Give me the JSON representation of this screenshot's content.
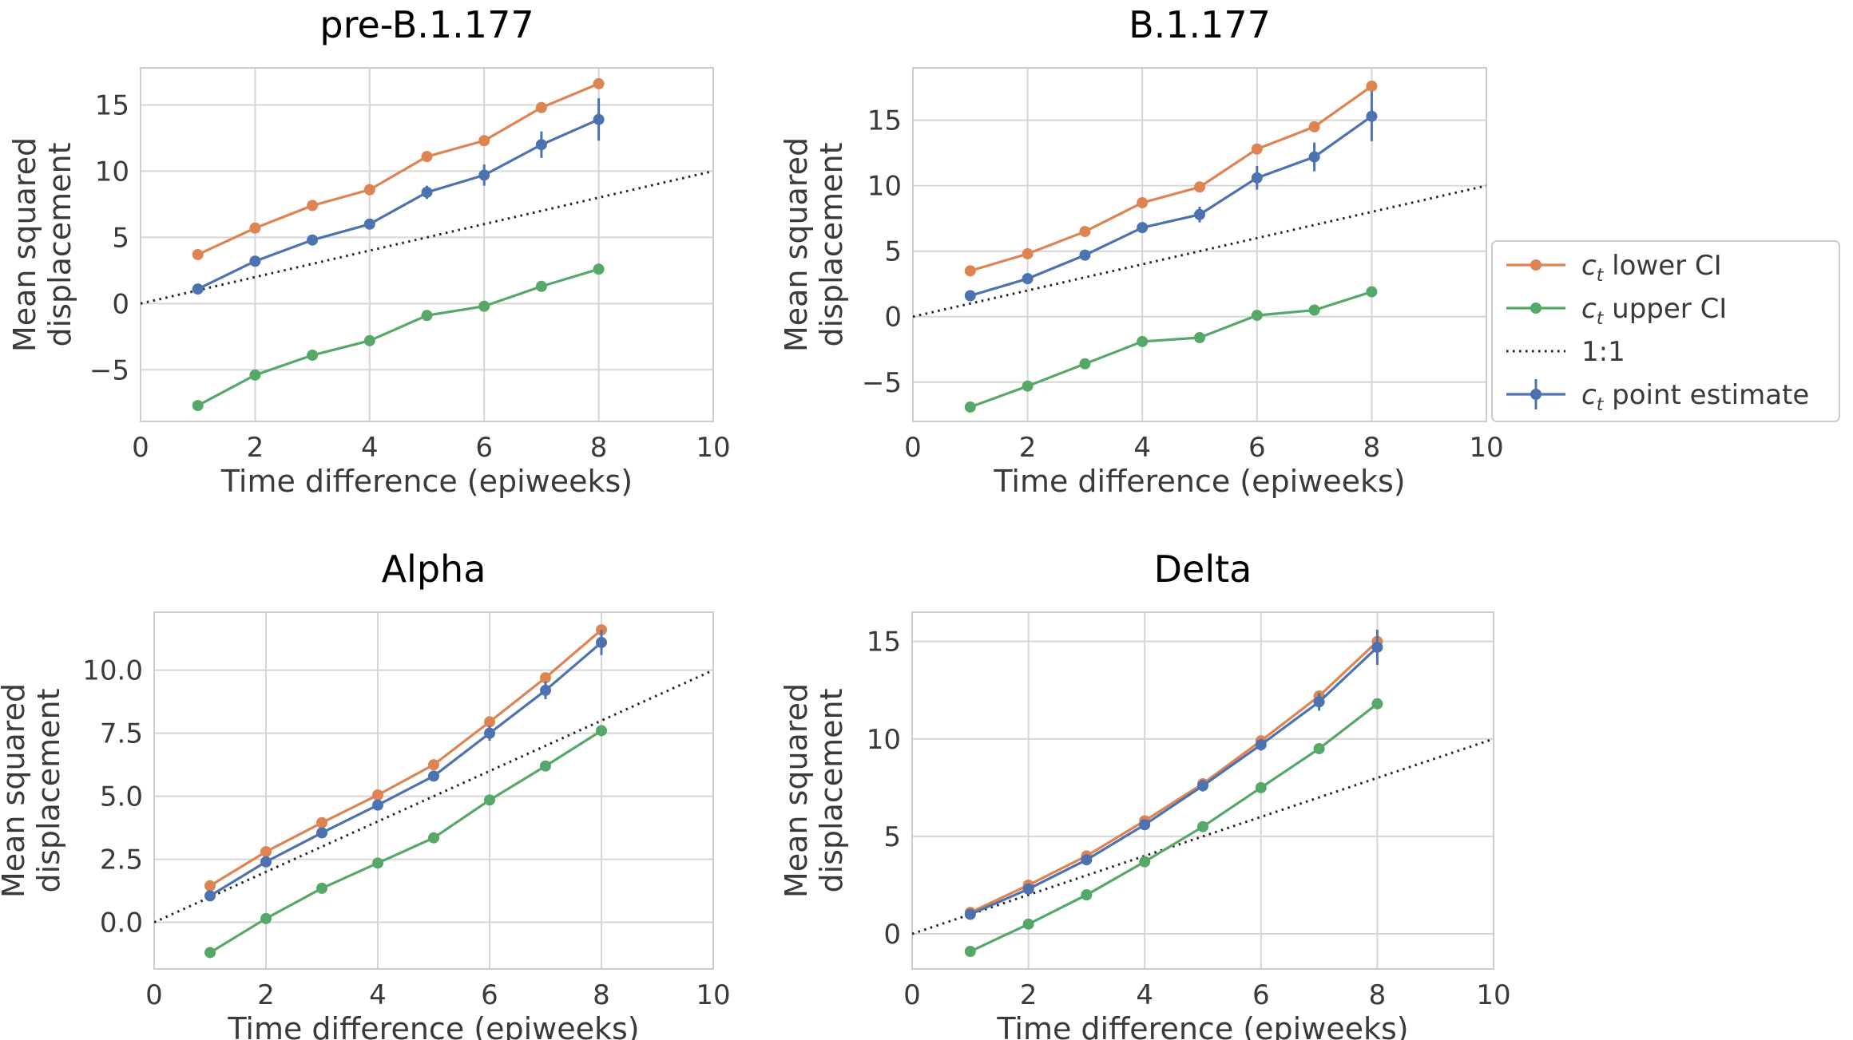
{
  "colors": {
    "lower_ci": "#DD8452",
    "upper_ci": "#55A868",
    "point_estimate": "#4C72B0",
    "one_to_one": "#222222",
    "grid": "#D6D6D6",
    "frame": "#CCCCCC"
  },
  "legend": {
    "placement": "right of top-right chart",
    "entries": [
      {
        "key": "lower",
        "symbol": "c",
        "subscript": "t",
        "text": " lower CI",
        "style": "line-marker",
        "color": "#DD8452"
      },
      {
        "key": "upper",
        "symbol": "c",
        "subscript": "t",
        "text": " upper CI",
        "style": "line-marker",
        "color": "#55A868"
      },
      {
        "key": "one",
        "symbol": "",
        "subscript": "",
        "text": "1:1",
        "style": "dotted",
        "color": "#222222"
      },
      {
        "key": "point",
        "symbol": "c",
        "subscript": "t",
        "text": " point estimate",
        "style": "errorbar",
        "color": "#4C72B0"
      }
    ]
  },
  "chart_data": [
    {
      "type": "line",
      "title": "pre-B.1.177",
      "xlabel": "Time difference (epiweeks)",
      "ylabel": [
        "Mean squared",
        "displacement"
      ],
      "xlim": [
        0,
        10
      ],
      "ylim": [
        -8.9,
        17.8
      ],
      "xticks": [
        0,
        2,
        4,
        6,
        8,
        10
      ],
      "yticks": [
        -5,
        0,
        5,
        10,
        15
      ],
      "ytick_labels": [
        "−5",
        "0",
        "5",
        "10",
        "15"
      ],
      "grid": true,
      "x": [
        1,
        2,
        3,
        4,
        5,
        6,
        7,
        8
      ],
      "series": [
        {
          "name": "c_t lower CI",
          "key": "lower",
          "values": [
            3.7,
            5.7,
            7.4,
            8.6,
            11.1,
            12.3,
            14.8,
            16.6
          ]
        },
        {
          "name": "c_t upper CI",
          "key": "upper",
          "values": [
            -7.7,
            -5.4,
            -3.9,
            -2.8,
            -0.9,
            -0.2,
            1.3,
            2.6
          ]
        },
        {
          "name": "c_t point estimate",
          "key": "point",
          "values": [
            1.1,
            3.2,
            4.8,
            6.0,
            8.4,
            9.7,
            12.0,
            13.9
          ],
          "err": [
            0.2,
            0.3,
            0.3,
            0.3,
            0.5,
            0.8,
            1.0,
            1.6
          ]
        },
        {
          "name": "1:1",
          "key": "one",
          "x": [
            0,
            10
          ],
          "values": [
            0,
            10
          ]
        }
      ]
    },
    {
      "type": "line",
      "title": "B.1.177",
      "xlabel": "Time difference (epiweeks)",
      "ylabel": [
        "Mean squared",
        "displacement"
      ],
      "xlim": [
        0,
        10
      ],
      "ylim": [
        -8.0,
        19.0
      ],
      "xticks": [
        0,
        2,
        4,
        6,
        8,
        10
      ],
      "yticks": [
        -5,
        0,
        5,
        10,
        15
      ],
      "ytick_labels": [
        "−5",
        "0",
        "5",
        "10",
        "15"
      ],
      "grid": true,
      "x": [
        1,
        2,
        3,
        4,
        5,
        6,
        7,
        8
      ],
      "series": [
        {
          "name": "c_t lower CI",
          "key": "lower",
          "values": [
            3.5,
            4.8,
            6.5,
            8.7,
            9.9,
            12.8,
            14.5,
            17.6
          ]
        },
        {
          "name": "c_t upper CI",
          "key": "upper",
          "values": [
            -6.9,
            -5.3,
            -3.6,
            -1.9,
            -1.6,
            0.1,
            0.5,
            1.9
          ]
        },
        {
          "name": "c_t point estimate",
          "key": "point",
          "values": [
            1.6,
            2.9,
            4.7,
            6.8,
            7.8,
            10.6,
            12.2,
            15.3
          ],
          "err": [
            0.2,
            0.3,
            0.3,
            0.4,
            0.6,
            0.9,
            1.1,
            1.9
          ]
        },
        {
          "name": "1:1",
          "key": "one",
          "x": [
            0,
            10
          ],
          "values": [
            0,
            10
          ]
        }
      ]
    },
    {
      "type": "line",
      "title": "Alpha",
      "xlabel": "Time difference (epiweeks)",
      "ylabel": [
        "Mean squared",
        "displacement"
      ],
      "xlim": [
        0,
        10
      ],
      "ylim": [
        -1.85,
        12.3
      ],
      "xticks": [
        0,
        2,
        4,
        6,
        8,
        10
      ],
      "yticks": [
        0,
        2.5,
        5,
        7.5,
        10
      ],
      "ytick_labels": [
        "0.0",
        "2.5",
        "5.0",
        "7.5",
        "10.0"
      ],
      "grid": true,
      "x": [
        1,
        2,
        3,
        4,
        5,
        6,
        7,
        8
      ],
      "series": [
        {
          "name": "c_t lower CI",
          "key": "lower",
          "values": [
            1.45,
            2.8,
            3.95,
            5.05,
            6.25,
            7.95,
            9.7,
            11.6
          ]
        },
        {
          "name": "c_t upper CI",
          "key": "upper",
          "values": [
            -1.2,
            0.15,
            1.35,
            2.35,
            3.35,
            4.85,
            6.2,
            7.6
          ]
        },
        {
          "name": "c_t point estimate",
          "key": "point",
          "values": [
            1.05,
            2.4,
            3.55,
            4.65,
            5.8,
            7.5,
            9.2,
            11.1
          ],
          "err": [
            0.1,
            0.15,
            0.15,
            0.2,
            0.2,
            0.3,
            0.35,
            0.5
          ]
        },
        {
          "name": "1:1",
          "key": "one",
          "x": [
            0,
            10
          ],
          "values": [
            0,
            10
          ]
        }
      ]
    },
    {
      "type": "line",
      "title": "Delta",
      "xlabel": "Time difference (epiweeks)",
      "ylabel": [
        "Mean squared",
        "displacement"
      ],
      "xlim": [
        0,
        10
      ],
      "ylim": [
        -1.8,
        16.5
      ],
      "xticks": [
        0,
        2,
        4,
        6,
        8,
        10
      ],
      "yticks": [
        0,
        5,
        10,
        15
      ],
      "ytick_labels": [
        "0",
        "5",
        "10",
        "15"
      ],
      "grid": true,
      "x": [
        1,
        2,
        3,
        4,
        5,
        6,
        7,
        8
      ],
      "series": [
        {
          "name": "c_t lower CI",
          "key": "lower",
          "values": [
            1.1,
            2.5,
            4.0,
            5.8,
            7.7,
            9.9,
            12.2,
            15.0
          ]
        },
        {
          "name": "c_t upper CI",
          "key": "upper",
          "values": [
            -0.9,
            0.5,
            2.0,
            3.7,
            5.5,
            7.5,
            9.5,
            11.8
          ]
        },
        {
          "name": "c_t point estimate",
          "key": "point",
          "values": [
            1.0,
            2.3,
            3.8,
            5.6,
            7.6,
            9.7,
            11.9,
            14.7
          ],
          "err": [
            0.1,
            0.15,
            0.2,
            0.25,
            0.3,
            0.3,
            0.45,
            0.9
          ]
        },
        {
          "name": "1:1",
          "key": "one",
          "x": [
            0,
            10
          ],
          "values": [
            0,
            10
          ]
        }
      ]
    }
  ]
}
